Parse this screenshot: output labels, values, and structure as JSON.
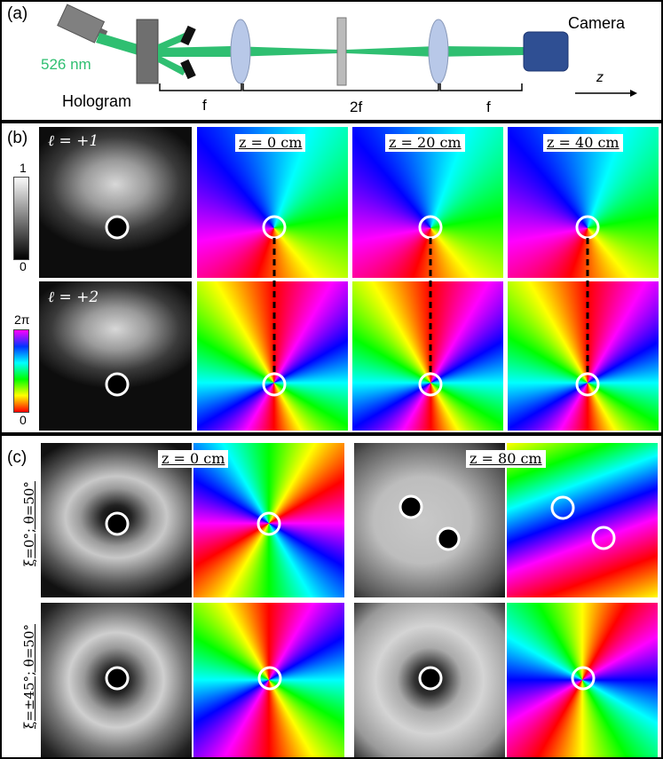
{
  "panel_a": {
    "label": "(a)",
    "wavelength": "526 nm",
    "hologram": "Hologram",
    "camera": "Camera",
    "f1": "f",
    "f2": "2f",
    "f3": "f",
    "axis": "z"
  },
  "panel_b": {
    "label": "(b)",
    "row1_l": "ℓ = +1",
    "row2_l": "ℓ = +2",
    "col_z0": "z = 0 cm",
    "col_z20": "z = 20 cm",
    "col_z40": "z = 40 cm",
    "intensity_bar": {
      "max": "1",
      "min": "0"
    },
    "phase_bar": {
      "max": "2π",
      "min": "0"
    }
  },
  "panel_c": {
    "label": "(c)",
    "col_z0": "z = 0 cm",
    "col_z80": "z = 80 cm",
    "row1": "ξ=0°; θ=50°",
    "row2": "ξ=±45°; θ=50°"
  },
  "colors": {
    "beam": "#2fbf71",
    "camera": "#2f4f93",
    "lens": "#b8c8e8",
    "marker": "#ffffff"
  }
}
